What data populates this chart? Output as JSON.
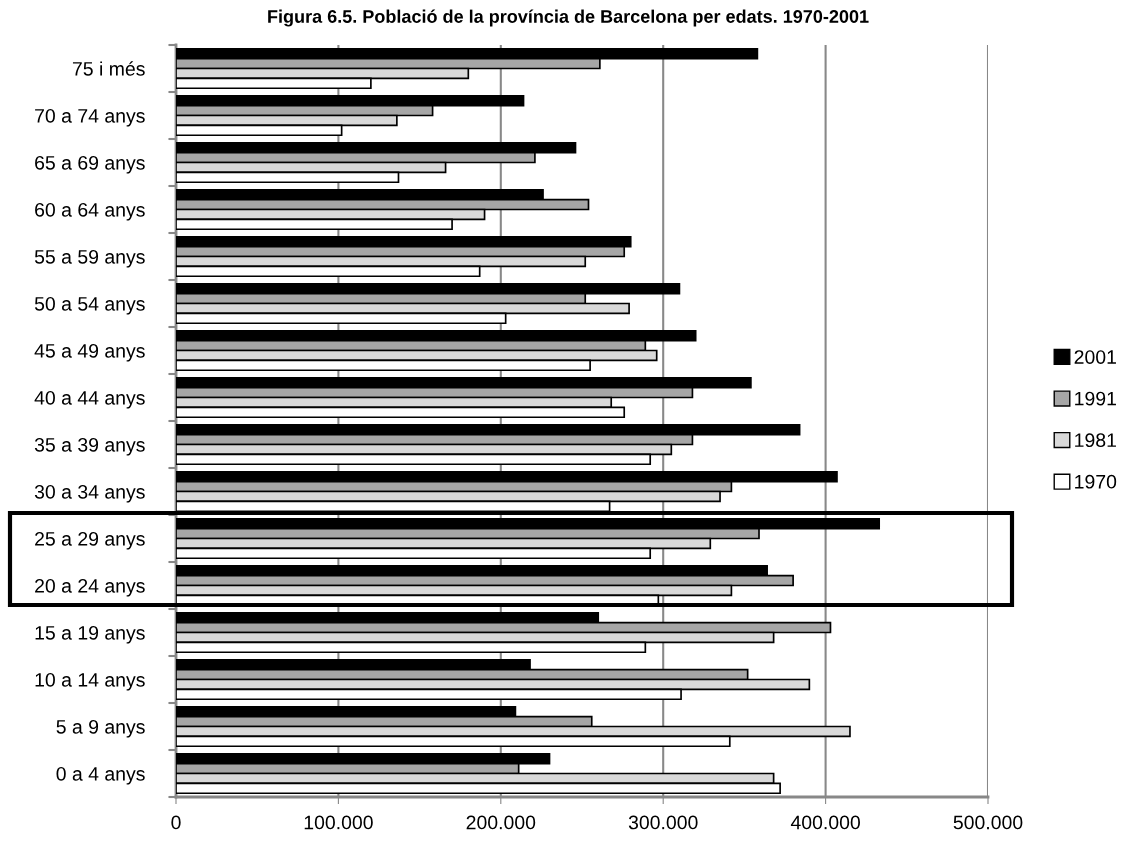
{
  "chart_data": {
    "type": "bar",
    "orientation": "horizontal",
    "title": "Figura 6.5. Població de la província de Barcelona per edats. 1970-2001",
    "categories": [
      "75 i més",
      "70 a 74 anys",
      "65 a 69 anys",
      "60 a 64 anys",
      "55 a 59 anys",
      "50 a 54 anys",
      "45 a 49 anys",
      "40 a 44 anys",
      "35 a 39 anys",
      "30 a 34 anys",
      "25 a 29 anys",
      "20 a 24 anys",
      "15 a 19 anys",
      "10 a 14 anys",
      "5 a 9 anys",
      "0 a 4 anys"
    ],
    "series": [
      {
        "name": "2001",
        "color": "#000000",
        "values": [
          358000,
          214000,
          246000,
          226000,
          280000,
          310000,
          320000,
          354000,
          384000,
          407000,
          433000,
          364000,
          260000,
          218000,
          209000,
          230000
        ]
      },
      {
        "name": "1991",
        "color": "#a6a6a6",
        "values": [
          261000,
          158000,
          221000,
          254000,
          276000,
          252000,
          289000,
          318000,
          318000,
          342000,
          359000,
          380000,
          403000,
          352000,
          256000,
          211000
        ]
      },
      {
        "name": "1981",
        "color": "#d9d9d9",
        "values": [
          180000,
          136000,
          166000,
          190000,
          252000,
          279000,
          296000,
          268000,
          305000,
          335000,
          329000,
          342000,
          368000,
          390000,
          415000,
          368000
        ]
      },
      {
        "name": "1970",
        "color": "#ffffff",
        "values": [
          120000,
          102000,
          137000,
          170000,
          187000,
          203000,
          255000,
          276000,
          292000,
          267000,
          292000,
          297000,
          289000,
          311000,
          341000,
          372000
        ]
      }
    ],
    "xlim": [
      0,
      500000
    ],
    "xticks": [
      0,
      {
        "value": 100000,
        "label": "100.000"
      },
      {
        "value": 200000,
        "label": "200.000"
      },
      {
        "value": 300000,
        "label": "300.000"
      },
      {
        "value": 400000,
        "label": "400.000"
      },
      {
        "value": 500000,
        "label": "500.000"
      }
    ],
    "grid": "x",
    "legend": "right"
  }
}
